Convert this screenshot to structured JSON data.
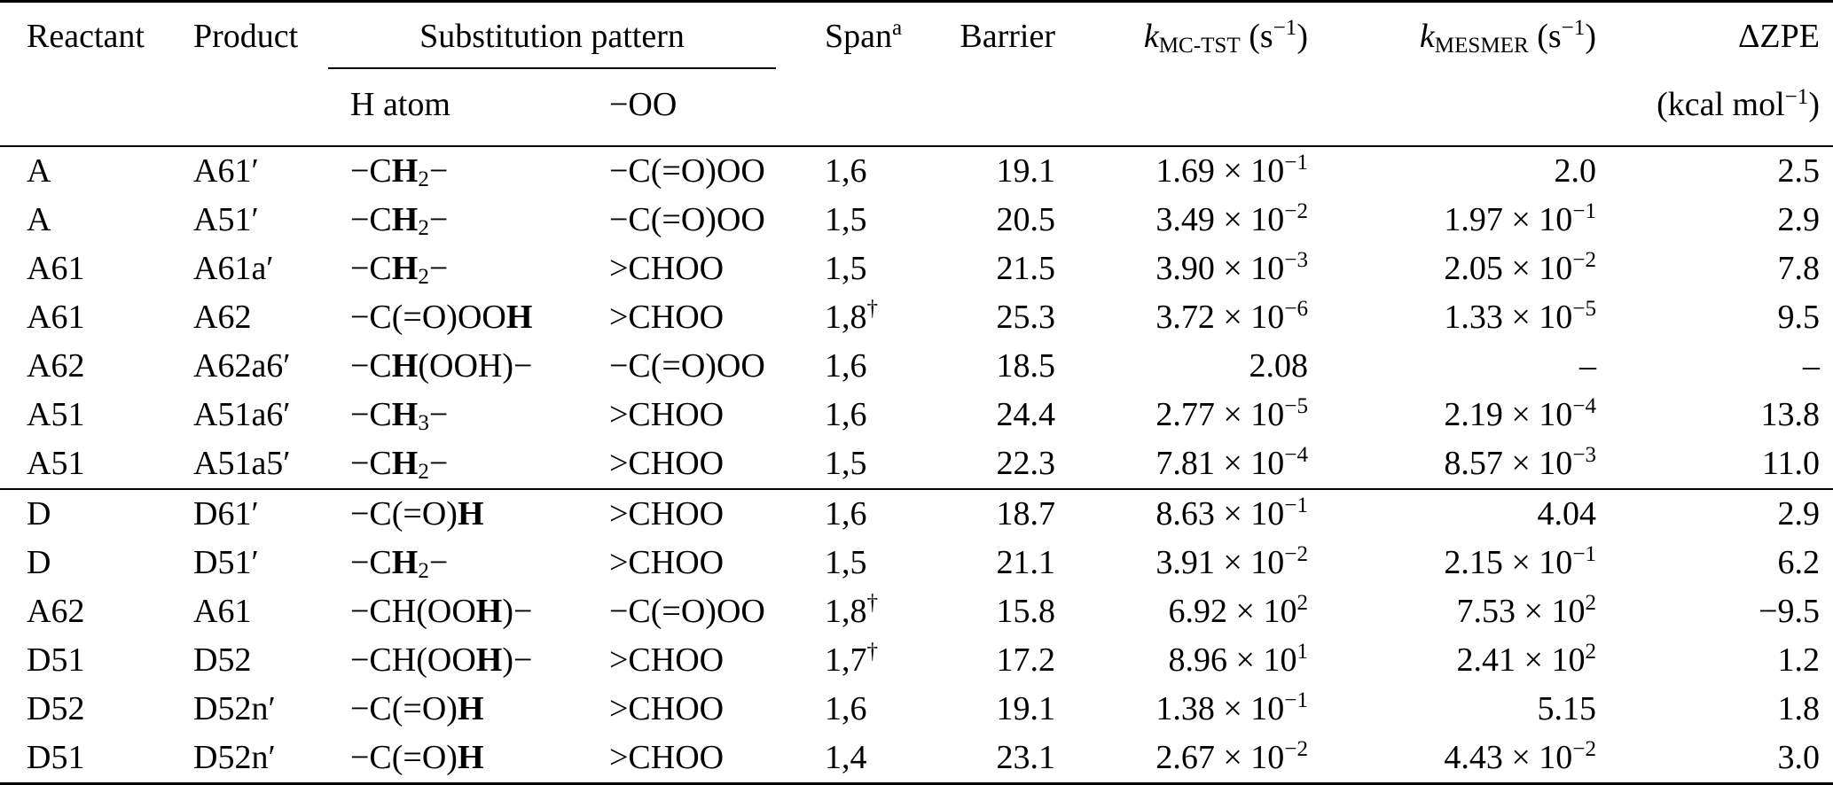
{
  "table": {
    "header": {
      "reactant": "Reactant",
      "product": "Product",
      "substitution": "Substitution pattern",
      "h_atom": "H atom",
      "oo": "−OO",
      "span": "Span^a^",
      "barrier": "Barrier",
      "k_mctst": "*k*~MC-TST~ (s^−1^)",
      "k_mesmer": "*k*~MESMER~ (s^−1^)",
      "zpe": "ΔZPE",
      "zpe_unit": "(kcal mol^−1^)"
    },
    "columns": [
      "Reactant",
      "Product",
      "H atom",
      "−OO",
      "Span",
      "Barrier",
      "k_MC-TST (s^-1)",
      "k_MESMER (s^-1)",
      "ΔZPE (kcal mol^-1)"
    ],
    "sections": [
      {
        "rows": [
          [
            "A",
            "A61′",
            "−C**H**~2~−",
            "−C(=O)OO",
            "1,6",
            "19.1",
            "1.69 × 10^−1^",
            "2.0",
            "2.5"
          ],
          [
            "A",
            "A51′",
            "−C**H**~2~−",
            "−C(=O)OO",
            "1,5",
            "20.5",
            "3.49 × 10^−2^",
            "1.97 × 10^−1^",
            "2.9"
          ],
          [
            "A61",
            "A61a′",
            "−C**H**~2~−",
            ">CHOO",
            "1,5",
            "21.5",
            "3.90 × 10^−3^",
            "2.05 × 10^−2^",
            "7.8"
          ],
          [
            "A61",
            "A62",
            "−C(=O)OO**H**",
            ">CHOO",
            "1,8^†^",
            "25.3",
            "3.72 × 10^−6^",
            "1.33 × 10^−5^",
            "9.5"
          ],
          [
            "A62",
            "A62a6′",
            "−C**H**(OOH)−",
            "−C(=O)OO",
            "1,6",
            "18.5",
            "2.08",
            "–",
            "–"
          ],
          [
            "A51",
            "A51a6′",
            "−C**H**~3~−",
            ">CHOO",
            "1,6",
            "24.4",
            "2.77 × 10^−5^",
            "2.19 × 10^−4^",
            "13.8"
          ],
          [
            "A51",
            "A51a5′",
            "−C**H**~2~−",
            ">CHOO",
            "1,5",
            "22.3",
            "7.81 × 10^−4^",
            "8.57 × 10^−3^",
            "11.0"
          ]
        ]
      },
      {
        "rows": [
          [
            "D",
            "D61′",
            "−C(=O)**H**",
            ">CHOO",
            "1,6",
            "18.7",
            "8.63 × 10^−1^",
            "4.04",
            "2.9"
          ],
          [
            "D",
            "D51′",
            "−C**H**~2~−",
            ">CHOO",
            "1,5",
            "21.1",
            "3.91 × 10^−2^",
            "2.15 × 10^−1^",
            "6.2"
          ],
          [
            "A62",
            "A61",
            "−CH(OO**H**)−",
            "−C(=O)OO",
            "1,8^†^",
            "15.8",
            "6.92 × 10^2^",
            "7.53 × 10^2^",
            "−9.5"
          ],
          [
            "D51",
            "D52",
            "−CH(OO**H**)−",
            ">CHOO",
            "1,7^†^",
            "17.2",
            "8.96 × 10^1^",
            "2.41 × 10^2^",
            "1.2"
          ],
          [
            "D52",
            "D52n′",
            "−C(=O)**H**",
            ">CHOO",
            "1,6",
            "19.1",
            "1.38 × 10^−1^",
            "5.15",
            "1.8"
          ],
          [
            "D51",
            "D52n′",
            "−C(=O)**H**",
            ">CHOO",
            "1,4",
            "23.1",
            "2.67 × 10^−2^",
            "4.43 × 10^−2^",
            "3.0"
          ]
        ]
      }
    ]
  }
}
